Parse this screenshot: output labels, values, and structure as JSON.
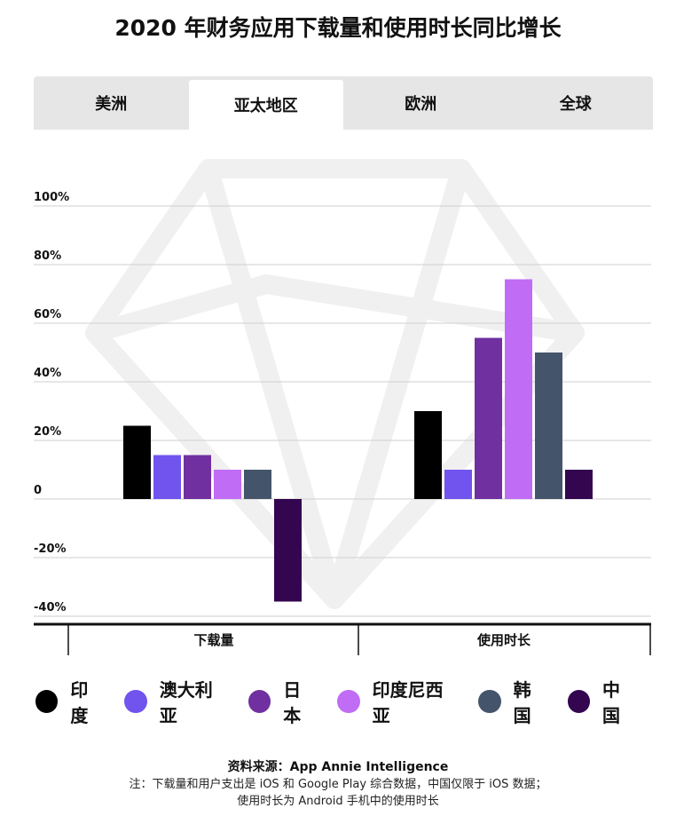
{
  "title": "2020 年财务应用下载量和使用时长同比增长",
  "tabs": [
    {
      "label": "美洲",
      "active": false
    },
    {
      "label": "亚太地区",
      "active": true
    },
    {
      "label": "欧洲",
      "active": false
    },
    {
      "label": "全球",
      "active": false
    }
  ],
  "chart_data": {
    "type": "bar",
    "categories": [
      "下载量",
      "使用时长"
    ],
    "series": [
      {
        "name": "印度",
        "color": "#000000",
        "values": [
          25,
          30
        ]
      },
      {
        "name": "澳大利亚",
        "color": "#7153ee",
        "values": [
          15,
          10
        ]
      },
      {
        "name": "日本",
        "color": "#7030a0",
        "values": [
          15,
          55
        ]
      },
      {
        "name": "印度尼西亚",
        "color": "#c06cf5",
        "values": [
          10,
          75
        ]
      },
      {
        "name": "韩国",
        "color": "#44546a",
        "values": [
          10,
          50
        ]
      },
      {
        "name": "中国",
        "color": "#33064f",
        "values": [
          -35,
          10
        ]
      }
    ],
    "yticks": [
      {
        "value": 100,
        "label": "100%"
      },
      {
        "value": 80,
        "label": "80%"
      },
      {
        "value": 60,
        "label": "60%"
      },
      {
        "value": 40,
        "label": "40%"
      },
      {
        "value": 20,
        "label": "20%"
      },
      {
        "value": 0,
        "label": "0"
      },
      {
        "value": -20,
        "label": "-20%"
      },
      {
        "value": -40,
        "label": "-40%"
      }
    ],
    "ylim": [
      -40,
      100
    ],
    "grid": true,
    "legend_position": "bottom"
  },
  "footer": {
    "source": "资料来源：App Annie Intelligence",
    "note_line1": "注：下载量和用户支出是 iOS 和 Google Play 综合数据，中国仅限于 iOS 数据；",
    "note_line2": "使用时长为 Android 手机中的使用时长"
  }
}
